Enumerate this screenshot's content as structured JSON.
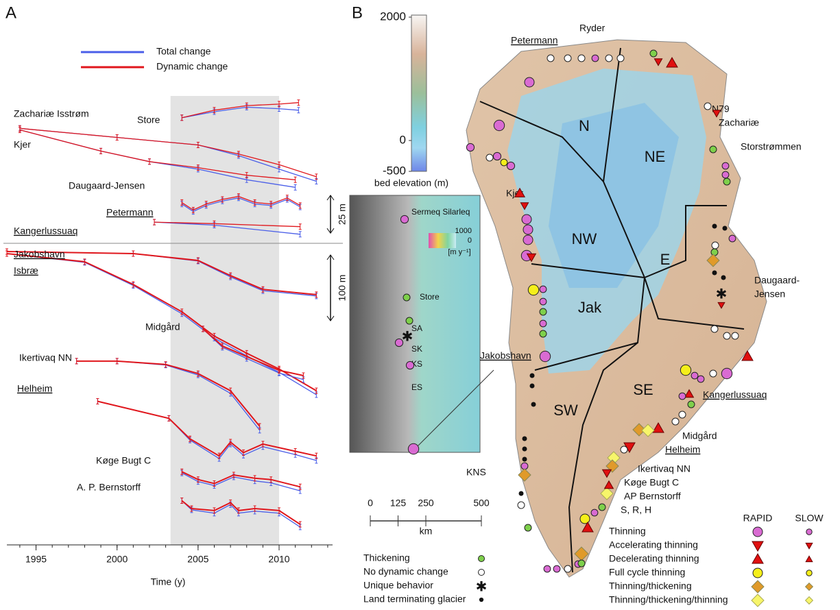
{
  "chart_data": {
    "type": "line",
    "panel_label": "A",
    "x_label": "Time (y)",
    "xlim": [
      1993.2,
      2013.3
    ],
    "xticks": [
      1995,
      2000,
      2005,
      2010
    ],
    "shaded_span": [
      2003.3,
      2010
    ],
    "legend": [
      {
        "name": "Total change",
        "color": "#4a5ee8"
      },
      {
        "name": "Dynamic change",
        "color": "#e0161c"
      }
    ],
    "scale_bars": [
      {
        "panel": 0,
        "value": 25,
        "label": "25 m"
      },
      {
        "panel": 1,
        "value": 100,
        "label": "100 m"
      }
    ],
    "panels": [
      {
        "ylim": [
          -111,
          0
        ],
        "glaciers": [
          {
            "name": [
              "Store"
            ],
            "x": [
              2004,
              2006,
              2008,
              2010,
              2011.2
            ],
            "total": [
              -28,
              -24,
              -21,
              -22,
              -23
            ],
            "dynamic": [
              -28,
              -23,
              -20,
              -19,
              -18
            ]
          },
          {
            "name": [
              "Zachariæ Isstrøm"
            ],
            "x": [
              1994,
              2000,
              2005,
              2007.5,
              2010,
              2012.3
            ],
            "total": [
              -35,
              -41,
              -46,
              -53,
              -62,
              -70
            ],
            "dynamic": [
              -35,
              -41,
              -46,
              -52,
              -59,
              -67
            ]
          },
          {
            "name": [
              "Kjer"
            ],
            "x": [
              1994,
              1999,
              2002,
              2005,
              2008,
              2011
            ],
            "total": [
              -36,
              -50,
              -57,
              -62,
              -69,
              -74
            ],
            "dynamic": [
              -36,
              -50,
              -57,
              -61,
              -66,
              -69
            ]
          },
          {
            "name": [
              "Daugaard-Jensen"
            ],
            "x": [
              2004,
              2004.7,
              2005.5,
              2006.5,
              2007.5,
              2008.5,
              2009.5,
              2010.5,
              2011.3
            ],
            "total": [
              -85,
              -90,
              -86,
              -83,
              -81,
              -85,
              -86,
              -82,
              -87
            ],
            "dynamic": [
              -84,
              -89,
              -85,
              -82,
              -80,
              -84,
              -85,
              -81,
              -86
            ]
          },
          {
            "name": [
              "Petermann"
            ],
            "underlined": true,
            "x": [
              2002.3,
              2006,
              2011.3
            ],
            "total": [
              -97,
              -99,
              -105
            ],
            "dynamic": [
              -97,
              -98,
              -100
            ]
          }
        ]
      },
      {
        "ylim": [
          -453,
          0
        ],
        "glaciers": [
          {
            "name": [
              "Kangerlussuaq"
            ],
            "underlined": true,
            "x": [
              1993.2,
              2001,
              2005,
              2007,
              2009,
              2012.3
            ],
            "total": [
              -12.5,
              -15.6,
              -27,
              -51,
              -72,
              -80
            ],
            "dynamic": [
              -12.5,
              -15.6,
              -26,
              -49,
              -70,
              -78
            ]
          },
          {
            "name": [
              "Jakobshavn",
              "Isbræ"
            ],
            "underlined": true,
            "x": [
              1993.2,
              1998,
              2001,
              2004,
              2006,
              2008,
              2010,
              2012.3
            ],
            "total": [
              -15.6,
              -29,
              -64,
              -107,
              -144,
              -171,
              -196,
              -230
            ],
            "dynamic": [
              -15.6,
              -28,
              -62.5,
              -104,
              -141,
              -167,
              -191,
              -224
            ]
          },
          {
            "name": [
              "Midgård"
            ],
            "x": [
              2005.3,
              2006.5,
              2008,
              2010,
              2011.5
            ],
            "total": [
              -130,
              -158,
              -175,
              -197,
              -207
            ],
            "dynamic": [
              -130,
              -156,
              -172,
              -193,
              -201
            ]
          },
          {
            "name": [
              "Ikertivaq NN"
            ],
            "x": [
              1997.5,
              2000,
              2003,
              2005,
              2007,
              2008.8
            ],
            "total": [
              -179,
              -179,
              -185,
              -200,
              -228,
              -284
            ],
            "dynamic": [
              -179,
              -179,
              -184,
              -198,
              -224,
              -278
            ]
          },
          {
            "name": [
              "Helheim"
            ],
            "underlined": true,
            "x": [
              1998.8,
              2003.2,
              2004.5,
              2006.3,
              2007,
              2007.8,
              2009,
              2011,
              2012.3
            ],
            "total": [
              -240,
              -266,
              -299,
              -327,
              -305,
              -322,
              -309,
              -321,
              -330
            ],
            "dynamic": [
              -240,
              -266,
              -297,
              -323,
              -302,
              -318,
              -305,
              -316,
              -323
            ]
          },
          {
            "name": [
              "Køge Bugt C"
            ],
            "x": [
              2004,
              2005,
              2006,
              2007.2,
              2008.5,
              2009.5,
              2011.3
            ],
            "total": [
              -349,
              -362,
              -368,
              -355,
              -361,
              -364,
              -376
            ],
            "dynamic": [
              -347,
              -359,
              -365,
              -352,
              -357,
              -359,
              -370
            ]
          },
          {
            "name": [
              "A. P. Bernstorff"
            ],
            "x": [
              2004,
              2004.6,
              2006,
              2007,
              2007.5,
              2008.5,
              2010,
              2011.3
            ],
            "total": [
              -391,
              -405,
              -410,
              -397,
              -410,
              -407,
              -410,
              -431
            ],
            "dynamic": [
              -391,
              -403,
              -406,
              -394,
              -406,
              -403,
              -406,
              -427
            ]
          }
        ]
      }
    ]
  },
  "map": {
    "panel_label": "B",
    "colorbar": {
      "ticks": [
        2000,
        0,
        -500
      ],
      "range": [
        -500,
        2000
      ],
      "label": "bed elevation (m)"
    },
    "regions": [
      "N",
      "NE",
      "NW",
      "Jak",
      "E",
      "SW",
      "SE"
    ],
    "glaciers": [
      [
        "Petermann"
      ],
      [
        "Ryder"
      ],
      [
        "N79"
      ],
      [
        "Zachariæ"
      ],
      [
        "Storstrømmen"
      ],
      [
        "Kjer"
      ],
      [
        "Daugaard-",
        "Jensen"
      ],
      [
        "Jakobshavn"
      ],
      [
        "Kangerlussuaq"
      ],
      [
        "Midgård"
      ],
      [
        "Helheim"
      ],
      [
        "Ikertivaq NN"
      ],
      [
        "Køge Bugt C"
      ],
      [
        "AP Bernstorff"
      ],
      [
        "S, R, H"
      ],
      [
        "KNS"
      ]
    ],
    "inset": {
      "labels": [
        "Sermeq Silarleq",
        "Store",
        "SA",
        "SK",
        "KS",
        "ES"
      ],
      "colorbar_ticks": [
        1000,
        0
      ],
      "unit": "[m y⁻¹]"
    },
    "scale_bar": {
      "ticks": [
        0,
        125,
        250,
        500
      ],
      "unit": "km"
    },
    "legend_left": [
      "Thickening",
      "No dynamic change",
      "Unique behavior",
      "Land terminating glacier"
    ],
    "legend_headers": [
      "RAPID",
      "SLOW"
    ],
    "legend_right": [
      "Thinning",
      "Accelerating thinning",
      "Decelerating thinning",
      "Full cycle thinning",
      "Thinning/thickening",
      "Thinning/thickening/thinning"
    ]
  }
}
